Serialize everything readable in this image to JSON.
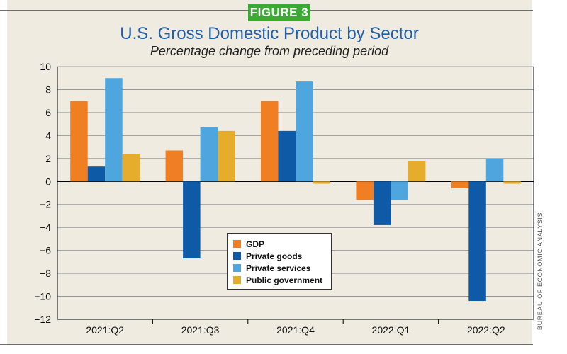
{
  "figure_label": "FIGURE 3",
  "source_credit": "BUREAU OF ECONOMIC ANALYSIS",
  "chart_data": {
    "type": "bar",
    "title": "U.S. Gross Domestic Product by Sector",
    "subtitle": "Percentage change from preceding period",
    "categories": [
      "2021:Q2",
      "2021:Q3",
      "2021:Q4",
      "2022:Q1",
      "2022:Q2"
    ],
    "series": [
      {
        "name": "GDP",
        "color": "#f07f23",
        "values": [
          7.0,
          2.7,
          7.0,
          -1.6,
          -0.6
        ]
      },
      {
        "name": "Private goods",
        "color": "#0e5aa7",
        "values": [
          1.3,
          -6.7,
          4.4,
          -3.8,
          -10.4
        ]
      },
      {
        "name": "Private services",
        "color": "#4fa6de",
        "values": [
          9.0,
          4.7,
          8.7,
          -1.6,
          2.0
        ]
      },
      {
        "name": "Public government",
        "color": "#e6ac2c",
        "values": [
          2.4,
          4.4,
          -0.2,
          1.8,
          -0.2
        ]
      }
    ],
    "ylim": [
      -12,
      10
    ],
    "yticks": [
      10,
      8,
      6,
      4,
      2,
      0,
      -2,
      -4,
      -6,
      -8,
      -10,
      -12
    ],
    "ytick_labels": [
      "10",
      "8",
      "6",
      "4",
      "2",
      "0",
      "−2",
      "−4",
      "−6",
      "−8",
      "−10",
      "−12"
    ],
    "grid": "horizontal",
    "legend_position": "center"
  }
}
